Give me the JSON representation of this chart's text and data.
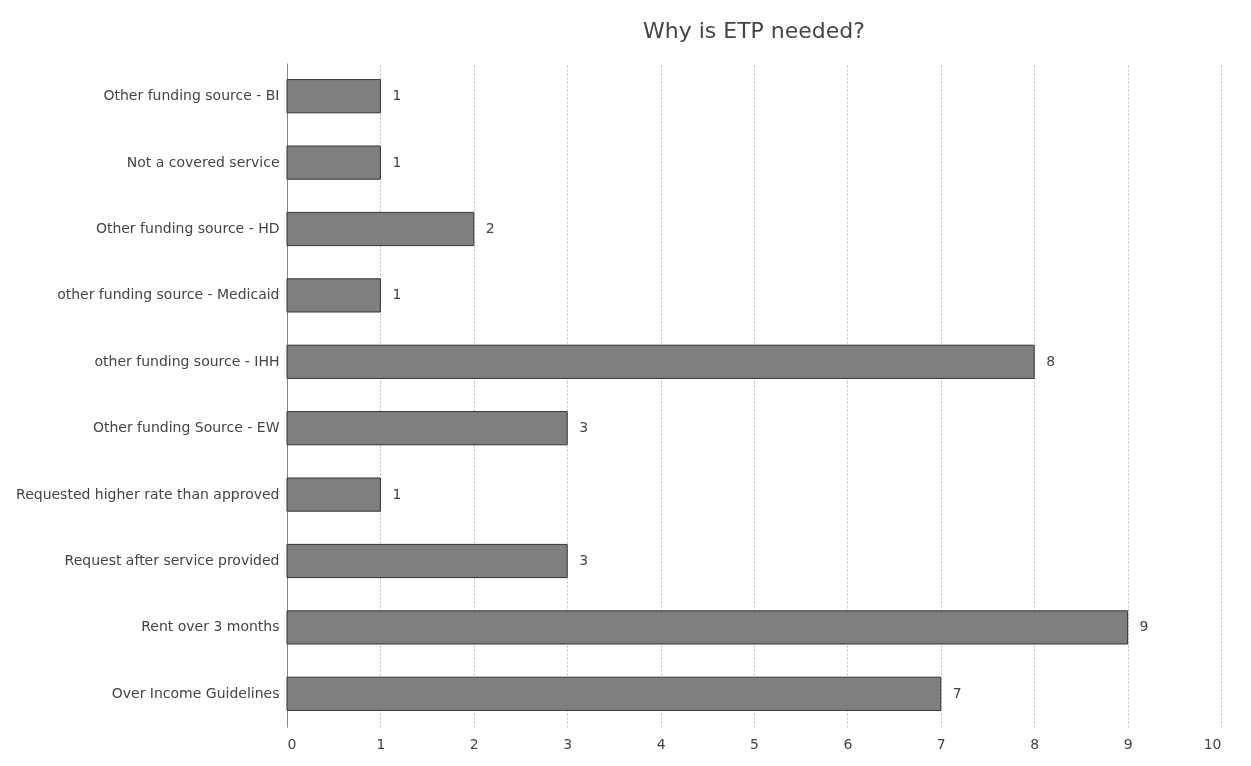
{
  "chart_data": {
    "type": "bar",
    "orientation": "horizontal",
    "title": "Why is ETP needed?",
    "categories": [
      "Other funding source - BI",
      "Not a covered service",
      "Other funding source - HD",
      "other funding source - Medicaid",
      "other funding source - IHH",
      "Other funding Source - EW",
      "Requested higher rate than approved",
      "Request after service provided",
      "Rent over 3 months",
      "Over Income Guidelines"
    ],
    "values": [
      1,
      1,
      2,
      1,
      8,
      3,
      1,
      3,
      9,
      7
    ],
    "color": "#7f7f7f",
    "xlim": [
      0,
      10
    ],
    "xticks": [
      0,
      1,
      2,
      3,
      4,
      5,
      6,
      7,
      8,
      9,
      10
    ],
    "grid": "x",
    "data_labels": true
  }
}
